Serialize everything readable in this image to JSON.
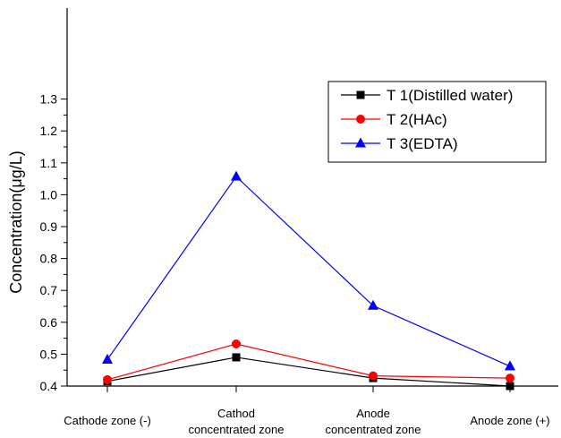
{
  "chart_data": {
    "type": "line",
    "title": "",
    "xlabel": "",
    "ylabel": "Concentration(μg/L)",
    "ylim": [
      0.35,
      1.3
    ],
    "yticks": [
      0.4,
      0.5,
      0.6,
      0.7,
      0.8,
      0.9,
      1.0,
      1.1,
      1.2,
      1.3
    ],
    "ytick_labels": [
      "0.4",
      "0.5",
      "0.6",
      "0.7",
      "0.8",
      "0.9",
      "1.0",
      "1.1",
      "1.2",
      "1.3"
    ],
    "categories": [
      [
        "Cathode zone (-)"
      ],
      [
        "Cathod",
        "concentrated zone"
      ],
      [
        "Anode",
        "concentrated zone"
      ],
      [
        "Anode zone (+)"
      ]
    ],
    "grid": false,
    "legend_position": "top-right",
    "series": [
      {
        "name": "T 1(Distilled water)",
        "color": "#000000",
        "marker": "square",
        "values": [
          0.415,
          0.49,
          0.425,
          0.4
        ]
      },
      {
        "name": "T 2(HAc)",
        "color": "#ff0000",
        "marker": "circle",
        "values": [
          0.42,
          0.532,
          0.432,
          0.425
        ]
      },
      {
        "name": "T 3(EDTA)",
        "color": "#0000ff",
        "marker": "triangle",
        "values": [
          0.483,
          1.057,
          0.652,
          0.462
        ]
      }
    ]
  }
}
